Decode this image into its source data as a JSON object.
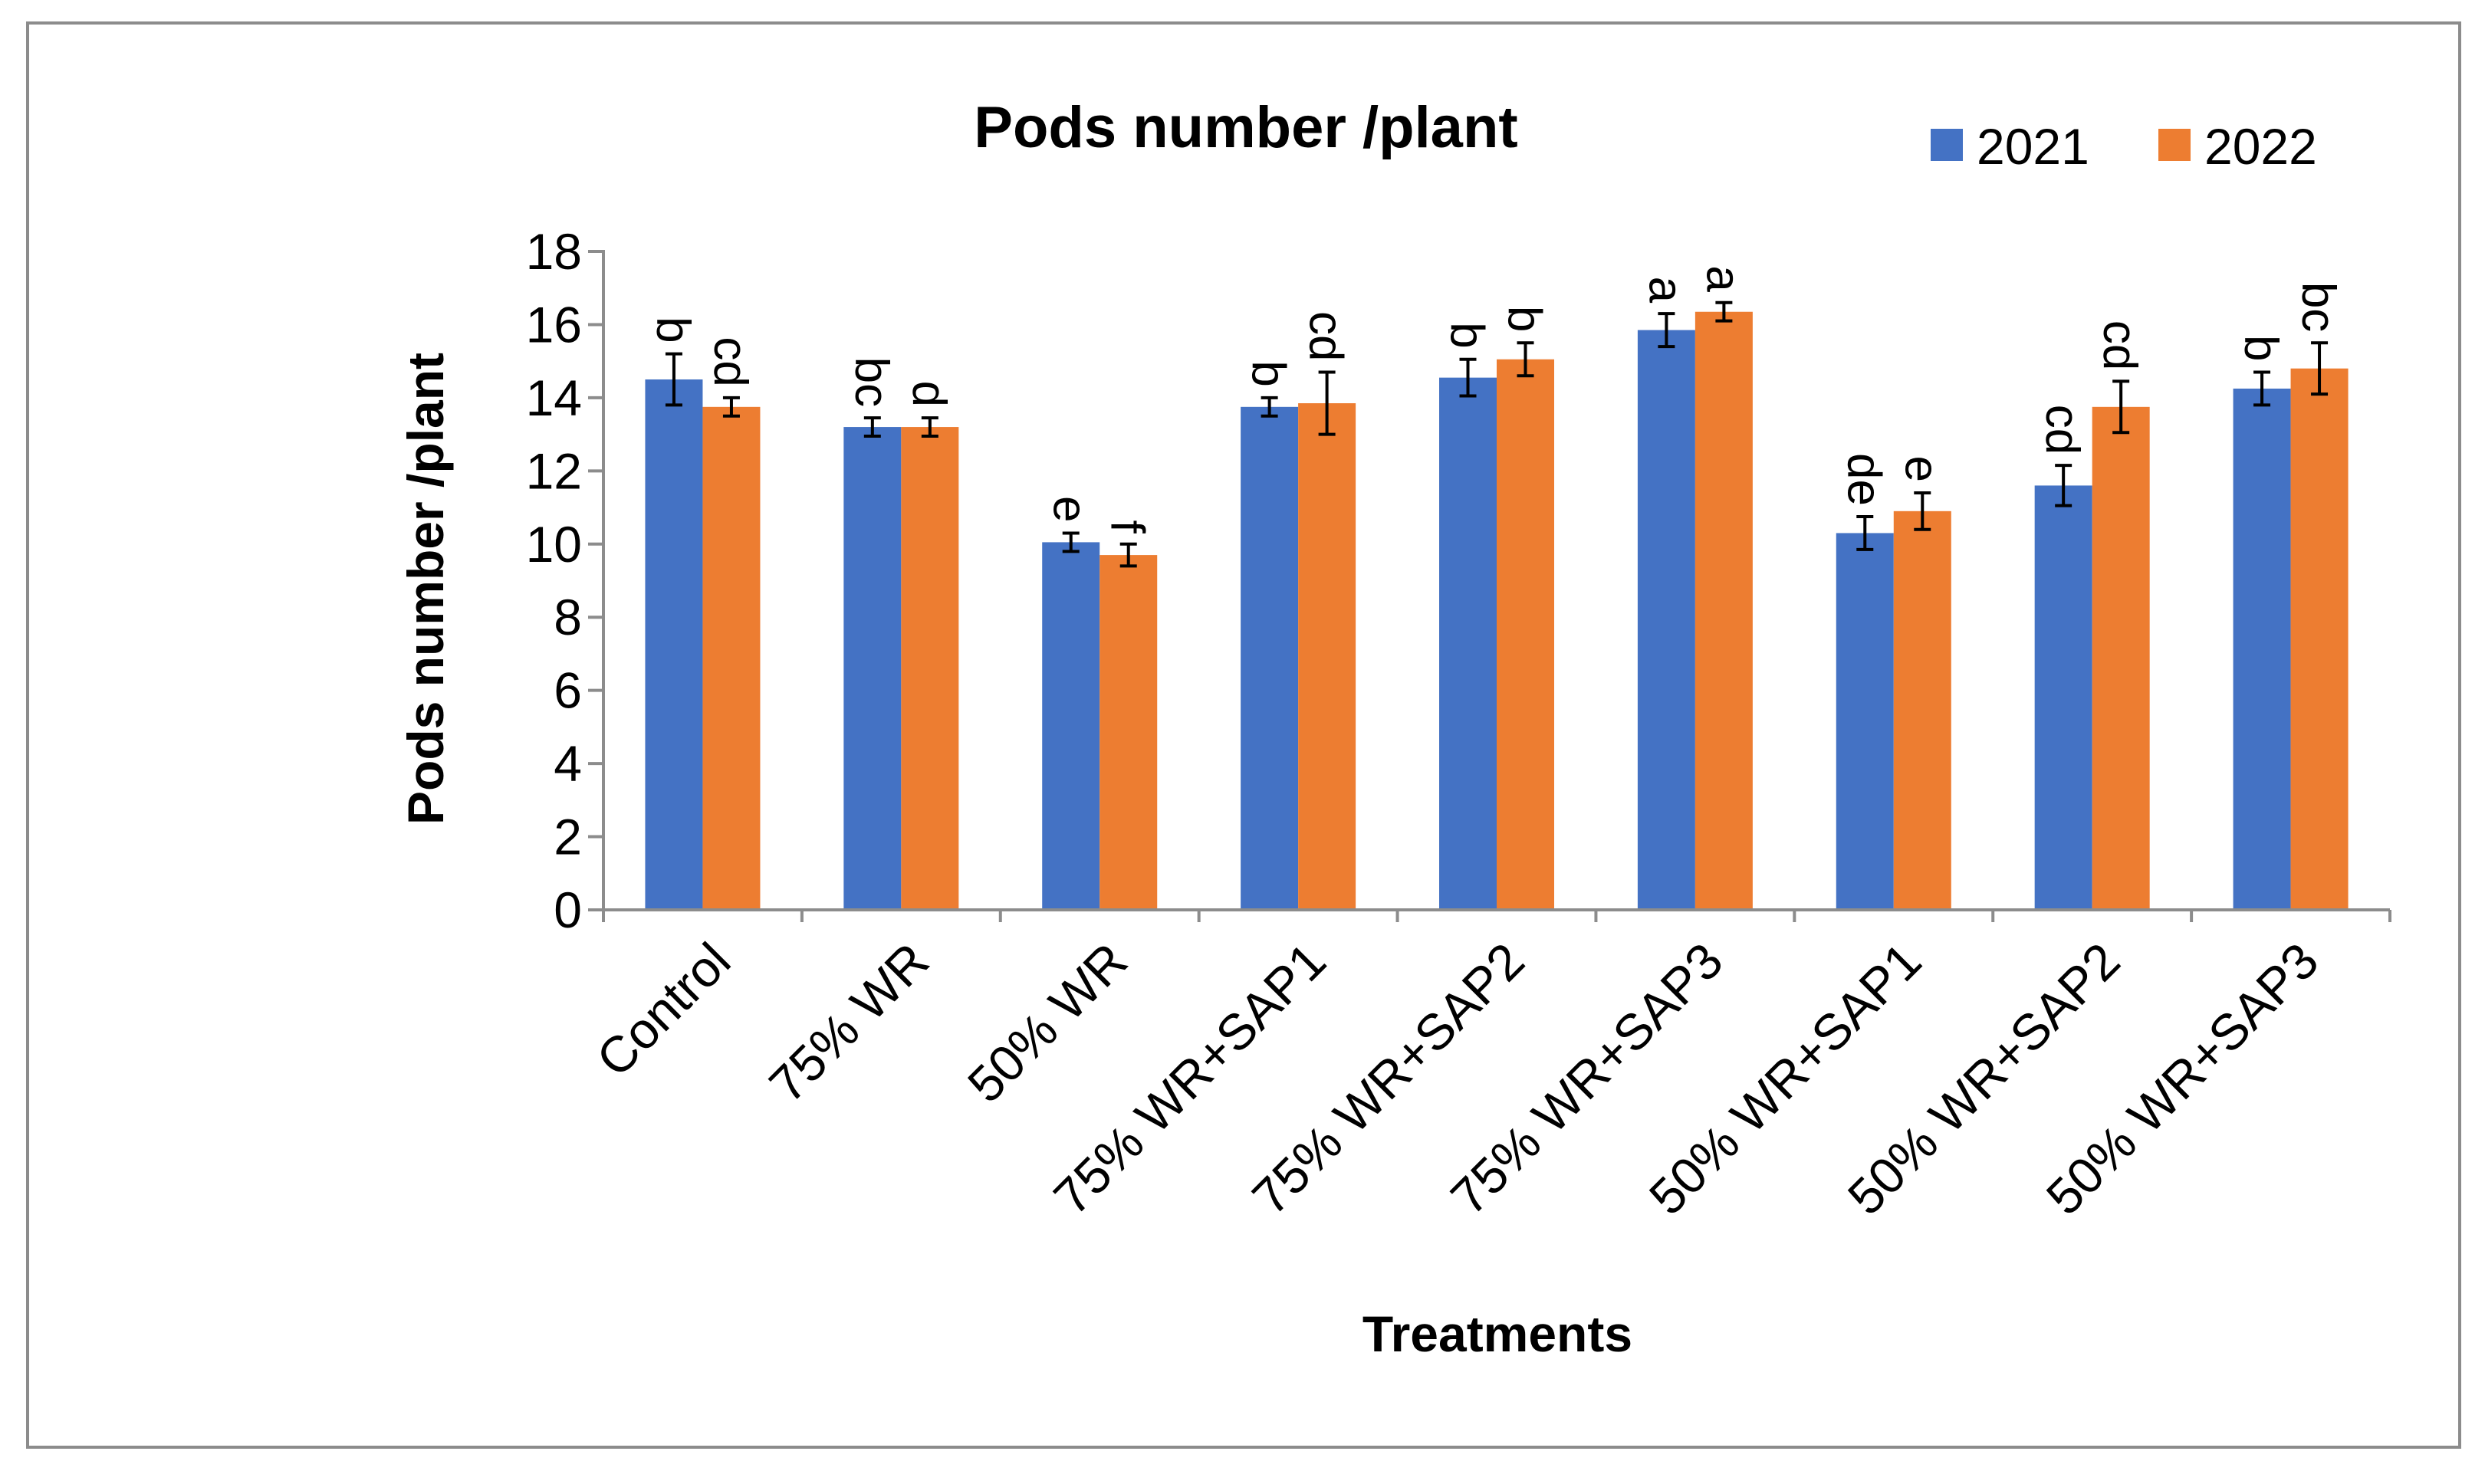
{
  "chart_data": {
    "type": "bar",
    "title": "Pods number /plant",
    "xlabel": "Treatments",
    "ylabel": "Pods number /plant",
    "ylim": [
      0,
      18
    ],
    "ytick_step": 2,
    "grid": false,
    "legend_position": "top-right",
    "categories": [
      "Control",
      "75% WR",
      "50% WR",
      "75% WR+SAP1",
      "75% WR+SAP2",
      "75% WR+SAP3",
      "50% WR+SAP1",
      "50% WR+SAP2",
      "50% WR+SAP3"
    ],
    "series": [
      {
        "name": "2021",
        "color": "#4472C4",
        "values": [
          14.5,
          13.2,
          10.05,
          13.75,
          14.55,
          15.85,
          10.3,
          11.6,
          14.25
        ],
        "errors": [
          0.7,
          0.25,
          0.25,
          0.25,
          0.5,
          0.45,
          0.45,
          0.55,
          0.45
        ],
        "letters": [
          "b",
          "bc",
          "e",
          "b",
          "b",
          "a",
          "de",
          "cd",
          "b"
        ]
      },
      {
        "name": "2022",
        "color": "#ED7D31",
        "values": [
          13.75,
          13.2,
          9.7,
          13.85,
          15.05,
          16.35,
          10.9,
          13.75,
          14.8
        ],
        "errors": [
          0.25,
          0.25,
          0.3,
          0.85,
          0.45,
          0.25,
          0.5,
          0.7,
          0.7
        ],
        "letters": [
          "cd",
          "d",
          "f",
          "cd",
          "b",
          "a",
          "e",
          "cd",
          "bc"
        ]
      }
    ]
  }
}
